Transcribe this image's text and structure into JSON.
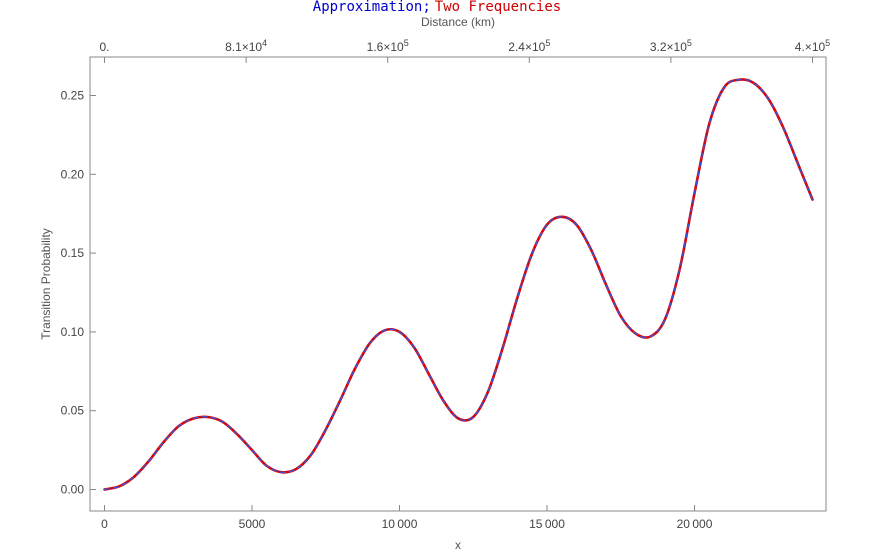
{
  "chart_data": {
    "type": "line",
    "title_parts": [
      {
        "text": "Approximation;",
        "color": "#0000cc"
      },
      {
        "text": "Two Frequencies",
        "color": "#cc0000"
      }
    ],
    "xlabel": "x",
    "ylabel": "Transition Probability",
    "top_axis_label": "Distance (km)",
    "xlim": [
      0,
      24000
    ],
    "ylim": [
      -0.01,
      0.273
    ],
    "x_ticks": [
      0,
      5000,
      10000,
      15000,
      20000
    ],
    "x_tick_labels": [
      "0",
      "5000",
      "10 000",
      "15 000",
      "20 000"
    ],
    "y_ticks": [
      0.0,
      0.05,
      0.1,
      0.15,
      0.2,
      0.25
    ],
    "y_tick_labels": [
      "0.00",
      "0.05",
      "0.10",
      "0.15",
      "0.20",
      "0.25"
    ],
    "top_ticks": [
      {
        "x": 0,
        "mantissa": "0.",
        "exp": ""
      },
      {
        "x": 4800,
        "mantissa": "8.1×10",
        "exp": "4"
      },
      {
        "x": 9600,
        "mantissa": "1.6×10",
        "exp": "5"
      },
      {
        "x": 14400,
        "mantissa": "2.4×10",
        "exp": "5"
      },
      {
        "x": 19200,
        "mantissa": "3.2×10",
        "exp": "5"
      },
      {
        "x": 24000,
        "mantissa": "4.×10",
        "exp": "5"
      }
    ],
    "series": [
      {
        "name": "Two Frequencies",
        "color": "#dd0000",
        "style": "solid",
        "x": [
          0,
          500,
          1000,
          1500,
          2000,
          2500,
          3000,
          3500,
          4000,
          4500,
          5000,
          5500,
          6000,
          6500,
          7000,
          7500,
          8000,
          8500,
          9000,
          9500,
          10000,
          10500,
          11000,
          11500,
          12000,
          12500,
          13000,
          13500,
          14000,
          14500,
          15000,
          15500,
          16000,
          16500,
          17000,
          17500,
          18000,
          18500,
          19000,
          19500,
          20000,
          20500,
          21000,
          21500,
          22000,
          22500,
          23000,
          23500,
          24000
        ],
        "values": [
          0.0,
          0.002,
          0.008,
          0.018,
          0.03,
          0.04,
          0.045,
          0.046,
          0.043,
          0.035,
          0.025,
          0.015,
          0.011,
          0.013,
          0.022,
          0.038,
          0.057,
          0.077,
          0.093,
          0.101,
          0.1,
          0.09,
          0.073,
          0.056,
          0.045,
          0.046,
          0.062,
          0.09,
          0.122,
          0.15,
          0.168,
          0.173,
          0.168,
          0.152,
          0.13,
          0.11,
          0.099,
          0.097,
          0.108,
          0.14,
          0.188,
          0.232,
          0.255,
          0.26,
          0.258,
          0.248,
          0.23,
          0.207,
          0.184
        ]
      },
      {
        "name": "Approximation",
        "color": "#3355dd",
        "style": "dashed",
        "x": [
          0,
          500,
          1000,
          1500,
          2000,
          2500,
          3000,
          3500,
          4000,
          4500,
          5000,
          5500,
          6000,
          6500,
          7000,
          7500,
          8000,
          8500,
          9000,
          9500,
          10000,
          10500,
          11000,
          11500,
          12000,
          12500,
          13000,
          13500,
          14000,
          14500,
          15000,
          15500,
          16000,
          16500,
          17000,
          17500,
          18000,
          18500,
          19000,
          19500,
          20000,
          20500,
          21000,
          21500,
          22000,
          22500,
          23000,
          23500,
          24000
        ],
        "values": [
          0.0,
          0.002,
          0.008,
          0.018,
          0.03,
          0.04,
          0.045,
          0.046,
          0.043,
          0.035,
          0.025,
          0.015,
          0.011,
          0.013,
          0.022,
          0.038,
          0.057,
          0.077,
          0.093,
          0.101,
          0.1,
          0.09,
          0.073,
          0.056,
          0.045,
          0.046,
          0.062,
          0.09,
          0.122,
          0.15,
          0.168,
          0.173,
          0.168,
          0.152,
          0.13,
          0.11,
          0.099,
          0.097,
          0.108,
          0.14,
          0.188,
          0.232,
          0.255,
          0.26,
          0.258,
          0.248,
          0.23,
          0.207,
          0.184
        ]
      }
    ],
    "grid": false
  }
}
